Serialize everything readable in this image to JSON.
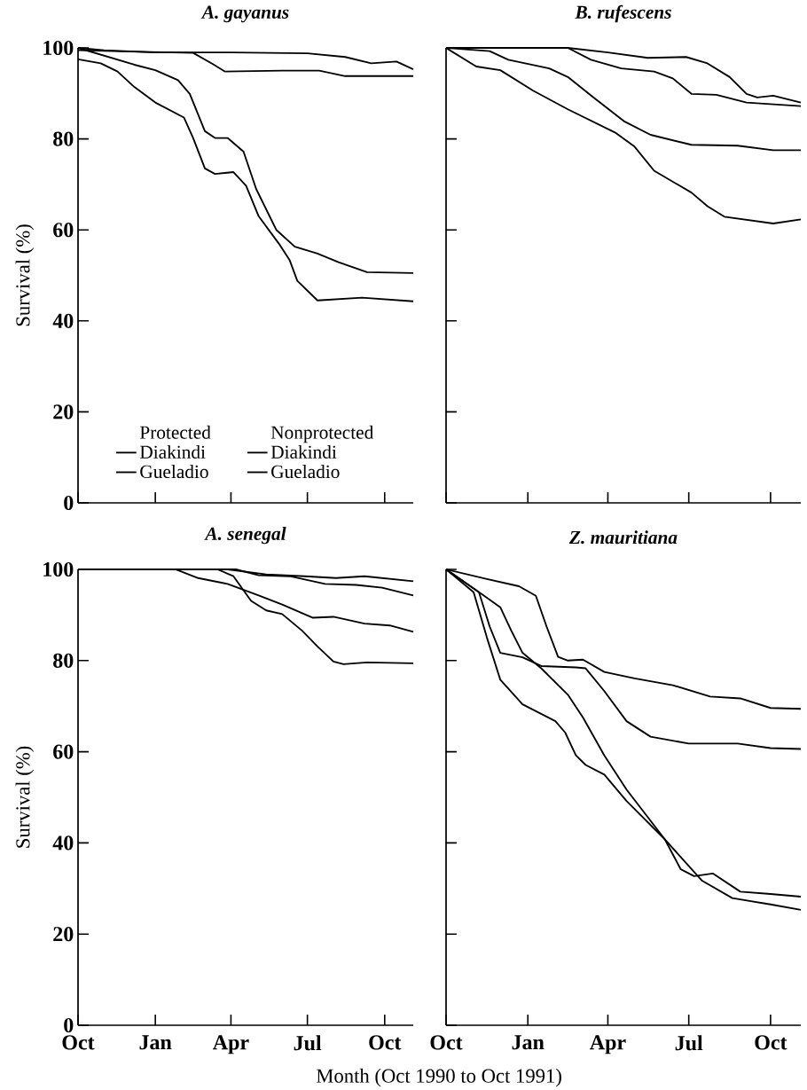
{
  "chart_data": [
    {
      "type": "line",
      "title": "A. gayanus",
      "ylabel": "Survival (%)",
      "xlim": [
        "1990-10-01",
        "1991-11-04"
      ],
      "ylim": [
        0,
        100
      ],
      "tick_labels": "y",
      "legend": "bottom",
      "annotations": [
        "Protected",
        "Nonprotected"
      ],
      "xticks": [
        {
          "value": "1990-10-01",
          "label": null
        },
        {
          "value": "1991-01-01",
          "label": null
        },
        {
          "value": "1991-04-01",
          "label": null
        },
        {
          "value": "1991-07-01",
          "label": null
        },
        {
          "value": "1991-10-01",
          "label": null
        }
      ],
      "yticks": [
        0,
        20,
        40,
        60,
        80,
        100
      ],
      "series": [
        {
          "name": "Diakindi",
          "color": "#000000",
          "x": [
            "1990-10-01",
            "1990-11-01",
            "1991-01-01",
            "1991-04-01",
            "1991-07-01",
            "1991-08-15",
            "1991-09-15",
            "1991-10-15",
            "1991-11-04"
          ],
          "values": [
            100,
            99.5,
            99,
            99,
            98.8,
            98,
            96.6,
            97,
            95.3
          ]
        },
        {
          "name": "Gueladio",
          "color": "#000000",
          "x": [
            "1990-10-01",
            "1990-12-01",
            "1991-02-15",
            "1991-03-10",
            "1991-03-25",
            "1991-06-01",
            "1991-07-15",
            "1991-08-15",
            "1991-11-04"
          ],
          "values": [
            99.5,
            99.2,
            98.9,
            96.5,
            94.8,
            95,
            95,
            93.8,
            93.8
          ]
        },
        {
          "name": "Diakindi",
          "color": "#000000",
          "x": [
            "1990-10-01",
            "1990-12-07",
            "1991-01-01",
            "1991-01-28",
            "1991-02-11",
            "1991-03-01",
            "1991-03-13",
            "1991-03-28",
            "1991-04-16",
            "1991-05-01",
            "1991-05-25",
            "1991-06-16",
            "1991-07-13",
            "1991-08-07",
            "1991-09-10",
            "1991-11-04"
          ],
          "values": [
            100,
            96.3,
            95.1,
            92.9,
            89.9,
            81.7,
            80.2,
            80.2,
            77.2,
            69,
            60,
            56.3,
            54.8,
            52.9,
            50.7,
            50.5
          ]
        },
        {
          "name": "Gueladio",
          "color": "#000000",
          "x": [
            "1990-10-01",
            "1990-10-28",
            "1990-11-17",
            "1990-12-07",
            "1991-01-01",
            "1991-02-04",
            "1991-02-15",
            "1991-03-01",
            "1991-03-13",
            "1991-04-04",
            "1991-04-19",
            "1991-05-04",
            "1991-05-28",
            "1991-06-10",
            "1991-06-19",
            "1991-07-13",
            "1991-09-04",
            "1991-11-04"
          ],
          "values": [
            97.5,
            96.6,
            94.8,
            91.4,
            88,
            84.7,
            80.2,
            73.5,
            72.3,
            72.7,
            69.7,
            63,
            57,
            53.3,
            48.8,
            44.5,
            45.1,
            44.3
          ]
        }
      ]
    },
    {
      "type": "line",
      "title": "B. rufescens",
      "xlim": [
        "1990-10-01",
        "1991-11-04"
      ],
      "ylim": [
        0,
        100
      ],
      "tick_labels": false,
      "xticks": [
        {
          "value": "1990-10-01",
          "label": null
        },
        {
          "value": "1991-01-01",
          "label": null
        },
        {
          "value": "1991-04-01",
          "label": null
        },
        {
          "value": "1991-07-01",
          "label": null
        },
        {
          "value": "1991-10-01",
          "label": null
        }
      ],
      "yticks": [
        {
          "value": 0,
          "label": null
        },
        {
          "value": 20,
          "label": null
        },
        {
          "value": 40,
          "label": null
        },
        {
          "value": 60,
          "label": null
        },
        {
          "value": 80,
          "label": null
        },
        {
          "value": 100,
          "label": null
        }
      ],
      "series": [
        {
          "color": "#000000",
          "x": [
            "1990-10-01",
            "1991-02-15",
            "1991-04-01",
            "1991-05-16",
            "1991-06-28",
            "1991-07-22",
            "1991-08-16",
            "1991-09-04",
            "1991-09-16",
            "1991-10-04",
            "1991-11-04"
          ],
          "values": [
            100,
            100,
            99,
            97.8,
            98,
            96.6,
            93.6,
            89.9,
            89.1,
            89.5,
            88
          ]
        },
        {
          "color": "#000000",
          "x": [
            "1990-10-01",
            "1991-02-15",
            "1991-03-13",
            "1991-04-16",
            "1991-05-23",
            "1991-06-13",
            "1991-07-04",
            "1991-08-01",
            "1991-09-04",
            "1991-11-04"
          ],
          "values": [
            100,
            100,
            97.4,
            95.5,
            94.8,
            93.3,
            89.9,
            89.7,
            88,
            87.2
          ]
        },
        {
          "color": "#000000",
          "x": [
            "1990-10-01",
            "1990-11-19",
            "1990-12-10",
            "1991-01-25",
            "1991-02-15",
            "1991-03-16",
            "1991-04-19",
            "1991-05-19",
            "1991-07-04",
            "1991-08-25",
            "1991-10-04",
            "1991-11-04"
          ],
          "values": [
            100,
            99.3,
            97.4,
            95.5,
            93.6,
            89.1,
            83.9,
            80.9,
            78.7,
            78.5,
            77.5,
            77.5
          ]
        },
        {
          "color": "#000000",
          "x": [
            "1990-10-01",
            "1990-11-04",
            "1990-12-01",
            "1991-01-07",
            "1991-02-15",
            "1991-04-10",
            "1991-05-01",
            "1991-05-23",
            "1991-07-04",
            "1991-07-22",
            "1991-08-10",
            "1991-10-04",
            "1991-11-04"
          ],
          "values": [
            100,
            95.9,
            95.1,
            90.6,
            86.5,
            81.3,
            78.3,
            73,
            68.2,
            65.2,
            62.9,
            61.4,
            62.3
          ]
        }
      ]
    },
    {
      "type": "line",
      "title": "A. senegal",
      "ylabel": "Survival (%)",
      "xlabel": "Month (Oct 1990 to Oct 1991)",
      "xlim": [
        "1990-10-01",
        "1991-11-04"
      ],
      "ylim": [
        0,
        100
      ],
      "xticks": [
        {
          "value": "1990-10-01",
          "label": "Oct"
        },
        {
          "value": "1991-01-01",
          "label": "Jan"
        },
        {
          "value": "1991-04-01",
          "label": "Apr"
        },
        {
          "value": "1991-07-01",
          "label": "Jul"
        },
        {
          "value": "1991-10-01",
          "label": "Oct"
        }
      ],
      "yticks": [
        0,
        20,
        40,
        60,
        80,
        100
      ],
      "series": [
        {
          "color": "#000000",
          "x": [
            "1990-10-01",
            "1991-03-28",
            "1991-05-13",
            "1991-06-28",
            "1991-08-04",
            "1991-09-07",
            "1991-11-04"
          ],
          "values": [
            100,
            100,
            98.9,
            98.5,
            98.1,
            98.5,
            97.4
          ]
        },
        {
          "color": "#000000",
          "x": [
            "1990-10-01",
            "1991-04-07",
            "1991-05-04",
            "1991-06-10",
            "1991-07-22",
            "1991-08-28",
            "1991-09-28",
            "1991-11-04"
          ],
          "values": [
            100,
            100,
            98.7,
            98.5,
            96.8,
            96.6,
            96,
            94.3
          ]
        },
        {
          "color": "#000000",
          "x": [
            "1990-10-01",
            "1991-01-25",
            "1991-02-21",
            "1991-03-28",
            "1991-05-04",
            "1991-06-01",
            "1991-07-07",
            "1991-08-01",
            "1991-09-07",
            "1991-10-07",
            "1991-11-04"
          ],
          "values": [
            100,
            100,
            98.1,
            96.8,
            94.3,
            92.3,
            89.4,
            89.6,
            88.1,
            87.7,
            86.3
          ]
        },
        {
          "color": "#000000",
          "x": [
            "1990-10-01",
            "1991-03-16",
            "1991-04-04",
            "1991-04-25",
            "1991-05-13",
            "1991-06-01",
            "1991-06-25",
            "1991-07-13",
            "1991-08-01",
            "1991-08-13",
            "1991-09-10",
            "1991-11-04"
          ],
          "values": [
            100,
            100,
            98.5,
            93.1,
            91,
            90.2,
            86.5,
            83.1,
            79.8,
            79.2,
            79.6,
            79.4
          ]
        }
      ]
    },
    {
      "type": "line",
      "title": "Z. mauritiana",
      "xlim": [
        "1990-10-01",
        "1991-11-04"
      ],
      "ylim": [
        0,
        100
      ],
      "tick_labels": "x",
      "xticks": [
        {
          "value": "1990-10-01",
          "label": "Oct"
        },
        {
          "value": "1991-01-01",
          "label": "Jan"
        },
        {
          "value": "1991-04-01",
          "label": "Apr"
        },
        {
          "value": "1991-07-01",
          "label": "Jul"
        },
        {
          "value": "1991-10-01",
          "label": "Oct"
        }
      ],
      "yticks": [
        {
          "value": 0,
          "label": null
        },
        {
          "value": 20,
          "label": null
        },
        {
          "value": 40,
          "label": null
        },
        {
          "value": 60,
          "label": null
        },
        {
          "value": 80,
          "label": null
        },
        {
          "value": 100,
          "label": null
        }
      ],
      "series": [
        {
          "color": "#000000",
          "x": [
            "1990-10-01",
            "1990-11-16",
            "1990-12-22",
            "1991-01-10",
            "1991-01-22",
            "1991-02-04",
            "1991-02-15",
            "1991-03-04",
            "1991-03-28",
            "1991-05-01",
            "1991-06-13",
            "1991-07-25",
            "1991-08-28",
            "1991-10-01",
            "1991-11-04"
          ],
          "values": [
            100,
            97.9,
            96.3,
            94.2,
            87.5,
            80.8,
            80,
            80.2,
            77.5,
            76.1,
            74.6,
            72.1,
            71.7,
            69.6,
            69.4
          ]
        },
        {
          "color": "#000000",
          "x": [
            "1990-10-01",
            "1990-11-07",
            "1990-11-19",
            "1990-12-01",
            "1990-12-26",
            "1991-01-16",
            "1991-02-24",
            "1991-03-07",
            "1991-03-28",
            "1991-04-22",
            "1991-05-19",
            "1991-07-01",
            "1991-08-25",
            "1991-10-01",
            "1991-11-04"
          ],
          "values": [
            100,
            95,
            87.5,
            81.7,
            80.7,
            78.8,
            78.5,
            78.3,
            73.3,
            66.7,
            63.3,
            61.8,
            61.8,
            60.8,
            60.6
          ]
        },
        {
          "color": "#000000",
          "x": [
            "1990-10-01",
            "1990-11-10",
            "1990-12-01",
            "1990-12-13",
            "1990-12-26",
            "1991-01-16",
            "1991-02-15",
            "1991-03-04",
            "1991-03-28",
            "1991-04-22",
            "1991-06-04",
            "1991-06-22",
            "1991-07-07",
            "1991-07-28",
            "1991-08-28",
            "1991-10-01",
            "1991-11-04"
          ],
          "values": [
            100,
            94.6,
            91.7,
            86.7,
            81.7,
            78.3,
            72.5,
            67.5,
            59.2,
            51.7,
            40.8,
            34.2,
            32.7,
            33.3,
            29.3,
            28.8,
            28.2
          ]
        },
        {
          "color": "#000000",
          "x": [
            "1990-10-01",
            "1990-11-01",
            "1990-11-16",
            "1990-12-01",
            "1990-12-26",
            "1991-02-01",
            "1991-02-12",
            "1991-02-24",
            "1991-03-07",
            "1991-03-28",
            "1991-04-22",
            "1991-06-04",
            "1991-07-16",
            "1991-08-19",
            "1991-10-01",
            "1991-11-04"
          ],
          "values": [
            100,
            95,
            85,
            75.8,
            70.4,
            66.7,
            64.2,
            59.2,
            57.1,
            55,
            49.2,
            40.8,
            31.7,
            27.9,
            26.5,
            25.3
          ]
        }
      ]
    }
  ]
}
